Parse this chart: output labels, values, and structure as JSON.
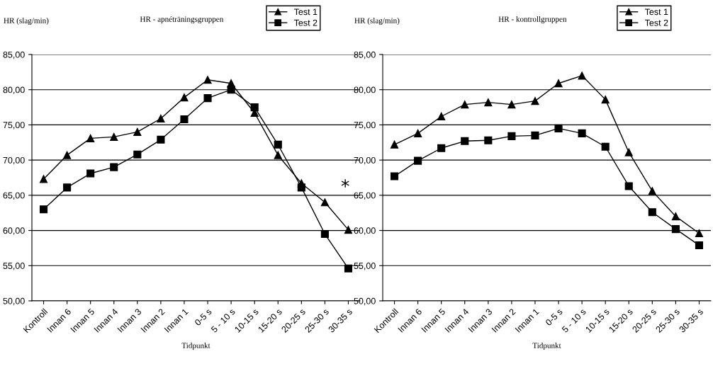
{
  "chart_data": [
    {
      "type": "line",
      "title": "HR - apnéträningsgruppen",
      "ylabel": "HR (slag/min)",
      "xlabel": "Tidpunkt",
      "categories": [
        "Kontroll",
        "Innan 6",
        "Innan 5",
        "Innan 4",
        "Innan 3",
        "Innan 2",
        "Innan 1",
        "0-5 s",
        "5 - 10 s",
        "10-15 s",
        "15-20 s",
        "20-25 s",
        "25-30 s",
        "30-35 s"
      ],
      "series": [
        {
          "name": "Test 1",
          "color": "#000000",
          "marker": "triangle",
          "values": [
            67.3,
            70.7,
            73.1,
            73.3,
            74.0,
            75.9,
            78.9,
            81.4,
            80.9,
            76.7,
            70.7,
            66.7,
            64.0,
            60.1
          ]
        },
        {
          "name": "Test 2",
          "color": "#000000",
          "marker": "square",
          "values": [
            63.0,
            66.1,
            68.1,
            69.0,
            70.8,
            72.9,
            75.8,
            78.8,
            80.0,
            77.5,
            72.2,
            66.1,
            59.5,
            54.6
          ]
        }
      ],
      "ylim": [
        50,
        85
      ],
      "yticks": [
        {
          "value": 50,
          "label": "50,00"
        },
        {
          "value": 55,
          "label": "55,00"
        },
        {
          "value": 60,
          "label": "60,00"
        },
        {
          "value": 65,
          "label": "65,00"
        },
        {
          "value": 70,
          "label": "70,00"
        },
        {
          "value": 75,
          "label": "75,00"
        },
        {
          "value": 80,
          "label": "80,00"
        },
        {
          "value": 85,
          "label": "85,00"
        }
      ],
      "grid": "y",
      "legend": "top right",
      "line_style": "solid",
      "annotations": [
        "*"
      ]
    },
    {
      "type": "line",
      "title": "HR - kontrollgruppen",
      "ylabel": "HR (slag/min)",
      "xlabel": "Tidpunkt",
      "categories": [
        "Kontroll",
        "Innan 6",
        "Innan 5",
        "Innan 4",
        "Innan 3",
        "Innan 2",
        "Innan 1",
        "0-5 s",
        "5 - 10 s",
        "10-15 s",
        "15-20 s",
        "20-25 s",
        "25-30 s",
        "30-35 s"
      ],
      "series": [
        {
          "name": "Test 1",
          "color": "#000000",
          "marker": "triangle",
          "values": [
            72.2,
            73.8,
            76.2,
            77.9,
            78.2,
            77.9,
            78.4,
            80.9,
            82.0,
            78.6,
            71.1,
            65.6,
            62.0,
            59.6
          ]
        },
        {
          "name": "Test 2",
          "color": "#000000",
          "marker": "square",
          "values": [
            67.7,
            69.9,
            71.7,
            72.7,
            72.8,
            73.4,
            73.5,
            74.5,
            73.8,
            71.9,
            66.3,
            62.6,
            60.2,
            57.9
          ]
        }
      ],
      "ylim": [
        50,
        85
      ],
      "yticks": [
        {
          "value": 50,
          "label": "50,00"
        },
        {
          "value": 55,
          "label": "55,00"
        },
        {
          "value": 60,
          "label": "60,00"
        },
        {
          "value": 65,
          "label": "65,00"
        },
        {
          "value": 70,
          "label": "70,00"
        },
        {
          "value": 75,
          "label": "75,00"
        },
        {
          "value": 80,
          "label": "80,00"
        },
        {
          "value": 85,
          "label": "85,00"
        }
      ],
      "grid": "y",
      "legend": "top right",
      "line_style": "solid"
    }
  ]
}
